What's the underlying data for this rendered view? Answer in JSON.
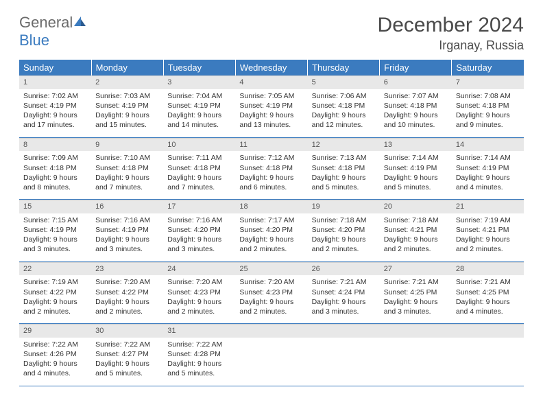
{
  "brand": {
    "word1": "General",
    "word2": "Blue"
  },
  "title": "December 2024",
  "location": "Irganay, Russia",
  "colors": {
    "header_bg": "#3b7bbf",
    "header_text": "#ffffff",
    "daynum_bg": "#e8e8e8",
    "row_border": "#3b7bbf",
    "body_text": "#333333",
    "logo_gray": "#6b6b6b",
    "logo_blue": "#3b7bbf"
  },
  "weekdays": [
    "Sunday",
    "Monday",
    "Tuesday",
    "Wednesday",
    "Thursday",
    "Friday",
    "Saturday"
  ],
  "weeks": [
    [
      {
        "n": "1",
        "sr": "7:02 AM",
        "ss": "4:19 PM",
        "dl": "9 hours and 17 minutes."
      },
      {
        "n": "2",
        "sr": "7:03 AM",
        "ss": "4:19 PM",
        "dl": "9 hours and 15 minutes."
      },
      {
        "n": "3",
        "sr": "7:04 AM",
        "ss": "4:19 PM",
        "dl": "9 hours and 14 minutes."
      },
      {
        "n": "4",
        "sr": "7:05 AM",
        "ss": "4:19 PM",
        "dl": "9 hours and 13 minutes."
      },
      {
        "n": "5",
        "sr": "7:06 AM",
        "ss": "4:18 PM",
        "dl": "9 hours and 12 minutes."
      },
      {
        "n": "6",
        "sr": "7:07 AM",
        "ss": "4:18 PM",
        "dl": "9 hours and 10 minutes."
      },
      {
        "n": "7",
        "sr": "7:08 AM",
        "ss": "4:18 PM",
        "dl": "9 hours and 9 minutes."
      }
    ],
    [
      {
        "n": "8",
        "sr": "7:09 AM",
        "ss": "4:18 PM",
        "dl": "9 hours and 8 minutes."
      },
      {
        "n": "9",
        "sr": "7:10 AM",
        "ss": "4:18 PM",
        "dl": "9 hours and 7 minutes."
      },
      {
        "n": "10",
        "sr": "7:11 AM",
        "ss": "4:18 PM",
        "dl": "9 hours and 7 minutes."
      },
      {
        "n": "11",
        "sr": "7:12 AM",
        "ss": "4:18 PM",
        "dl": "9 hours and 6 minutes."
      },
      {
        "n": "12",
        "sr": "7:13 AM",
        "ss": "4:18 PM",
        "dl": "9 hours and 5 minutes."
      },
      {
        "n": "13",
        "sr": "7:14 AM",
        "ss": "4:19 PM",
        "dl": "9 hours and 5 minutes."
      },
      {
        "n": "14",
        "sr": "7:14 AM",
        "ss": "4:19 PM",
        "dl": "9 hours and 4 minutes."
      }
    ],
    [
      {
        "n": "15",
        "sr": "7:15 AM",
        "ss": "4:19 PM",
        "dl": "9 hours and 3 minutes."
      },
      {
        "n": "16",
        "sr": "7:16 AM",
        "ss": "4:19 PM",
        "dl": "9 hours and 3 minutes."
      },
      {
        "n": "17",
        "sr": "7:16 AM",
        "ss": "4:20 PM",
        "dl": "9 hours and 3 minutes."
      },
      {
        "n": "18",
        "sr": "7:17 AM",
        "ss": "4:20 PM",
        "dl": "9 hours and 2 minutes."
      },
      {
        "n": "19",
        "sr": "7:18 AM",
        "ss": "4:20 PM",
        "dl": "9 hours and 2 minutes."
      },
      {
        "n": "20",
        "sr": "7:18 AM",
        "ss": "4:21 PM",
        "dl": "9 hours and 2 minutes."
      },
      {
        "n": "21",
        "sr": "7:19 AM",
        "ss": "4:21 PM",
        "dl": "9 hours and 2 minutes."
      }
    ],
    [
      {
        "n": "22",
        "sr": "7:19 AM",
        "ss": "4:22 PM",
        "dl": "9 hours and 2 minutes."
      },
      {
        "n": "23",
        "sr": "7:20 AM",
        "ss": "4:22 PM",
        "dl": "9 hours and 2 minutes."
      },
      {
        "n": "24",
        "sr": "7:20 AM",
        "ss": "4:23 PM",
        "dl": "9 hours and 2 minutes."
      },
      {
        "n": "25",
        "sr": "7:20 AM",
        "ss": "4:23 PM",
        "dl": "9 hours and 2 minutes."
      },
      {
        "n": "26",
        "sr": "7:21 AM",
        "ss": "4:24 PM",
        "dl": "9 hours and 3 minutes."
      },
      {
        "n": "27",
        "sr": "7:21 AM",
        "ss": "4:25 PM",
        "dl": "9 hours and 3 minutes."
      },
      {
        "n": "28",
        "sr": "7:21 AM",
        "ss": "4:25 PM",
        "dl": "9 hours and 4 minutes."
      }
    ],
    [
      {
        "n": "29",
        "sr": "7:22 AM",
        "ss": "4:26 PM",
        "dl": "9 hours and 4 minutes."
      },
      {
        "n": "30",
        "sr": "7:22 AM",
        "ss": "4:27 PM",
        "dl": "9 hours and 5 minutes."
      },
      {
        "n": "31",
        "sr": "7:22 AM",
        "ss": "4:28 PM",
        "dl": "9 hours and 5 minutes."
      },
      null,
      null,
      null,
      null
    ]
  ],
  "labels": {
    "sunrise": "Sunrise: ",
    "sunset": "Sunset: ",
    "daylight": "Daylight: "
  }
}
